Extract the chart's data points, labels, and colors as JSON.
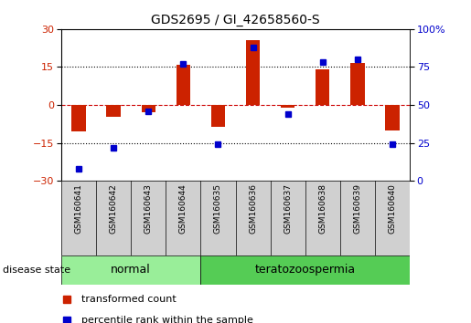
{
  "title": "GDS2695 / GI_42658560-S",
  "samples": [
    "GSM160641",
    "GSM160642",
    "GSM160643",
    "GSM160644",
    "GSM160635",
    "GSM160636",
    "GSM160637",
    "GSM160638",
    "GSM160639",
    "GSM160640"
  ],
  "groups": [
    "normal",
    "normal",
    "normal",
    "normal",
    "teratozoospermia",
    "teratozoospermia",
    "teratozoospermia",
    "teratozoospermia",
    "teratozoospermia",
    "teratozoospermia"
  ],
  "transformed_count": [
    -10.5,
    -4.5,
    -3.0,
    16.0,
    -8.5,
    25.5,
    -1.0,
    14.0,
    16.5,
    -10.0
  ],
  "percentile_rank": [
    8,
    22,
    46,
    77,
    24,
    88,
    44,
    78,
    80,
    24
  ],
  "ylim_left": [
    -30,
    30
  ],
  "ylim_right": [
    0,
    100
  ],
  "yticks_left": [
    -30,
    -15,
    0,
    15,
    30
  ],
  "yticks_right": [
    0,
    25,
    50,
    75,
    100
  ],
  "bar_color": "#cc2200",
  "dot_color": "#0000cc",
  "hline_color": "#cc0000",
  "grid_color": "#000000",
  "bg_color": "#ffffff",
  "plot_bg": "#ffffff",
  "sample_bg": "#d0d0d0",
  "group_colors": {
    "normal": "#99ee99",
    "teratozoospermia": "#55cc55"
  },
  "normal_label": "normal",
  "teratozoospermia_label": "teratozoospermia",
  "legend_bar_label": "transformed count",
  "legend_dot_label": "percentile rank within the sample",
  "disease_state_label": "disease state"
}
